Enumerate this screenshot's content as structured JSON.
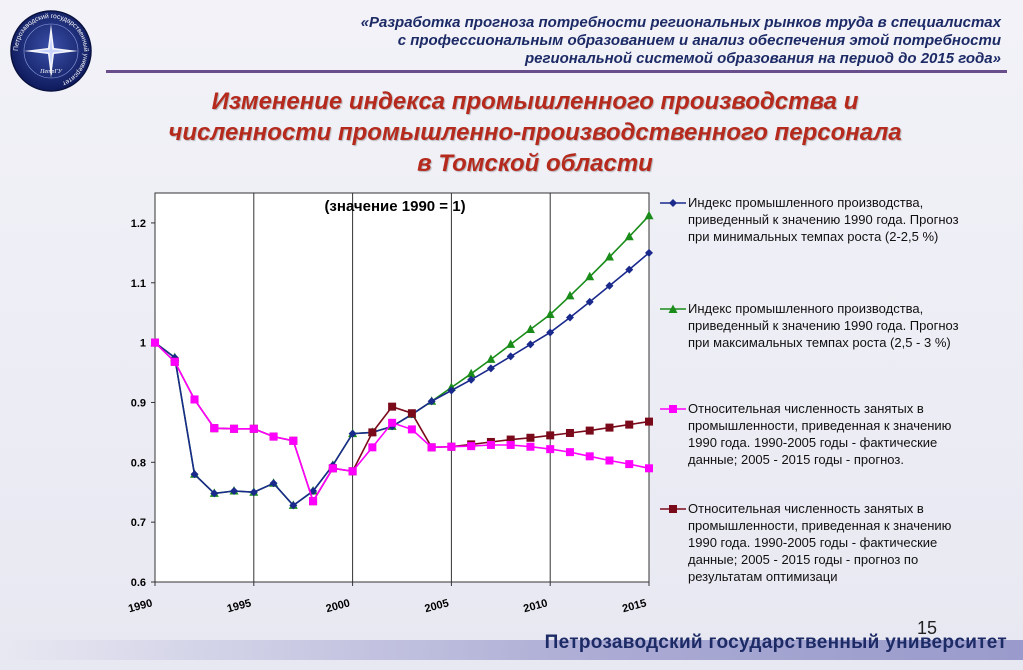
{
  "header": {
    "lines": [
      "«Разработка прогноза потребности региональных рынков труда в специалистах",
      "с профессиональным образованием и анализ обеспечения этой потребности",
      "региональной системой образования на период до 2015 года»"
    ],
    "logo_text": "Петрозаводский государственный университет",
    "logo_sub": "ПетрГУ"
  },
  "title": {
    "line1": "Изменение индекса промышленного производства и",
    "line2": "численности промышленно-производственного персонала",
    "line3": "в Томской области"
  },
  "chart_data": {
    "type": "line",
    "title": "(значение 1990 =  1)",
    "xlabel": "",
    "ylabel": "",
    "xlim": [
      1990,
      2015
    ],
    "ylim": [
      0.6,
      1.25
    ],
    "x_ticks": [
      1990,
      1995,
      2000,
      2005,
      2010,
      2015
    ],
    "y_ticks": [
      0.6,
      0.7,
      0.8,
      0.9,
      1,
      1.1,
      1.2
    ],
    "y_tick_labels": [
      "0.6",
      "0.7",
      "0.8",
      "0.9",
      "1",
      "1.1",
      "1.2"
    ],
    "grid": "vertical",
    "legend_position": "right",
    "x": [
      1990,
      1991,
      1992,
      1993,
      1994,
      1995,
      1996,
      1997,
      1998,
      1999,
      2000,
      2001,
      2002,
      2003,
      2004,
      2005,
      2006,
      2007,
      2008,
      2009,
      2010,
      2011,
      2012,
      2013,
      2014,
      2015
    ],
    "series": [
      {
        "name": "Индекс промышленного производства, приведенный к значению 1990 года. Прогноз при минимальных темпах роста (2-2,5 %)",
        "color": "#1a2a8c",
        "marker": "diamond",
        "values": [
          1.0,
          0.975,
          0.78,
          0.748,
          0.752,
          0.75,
          0.765,
          0.728,
          0.752,
          0.795,
          0.848,
          0.85,
          0.86,
          0.88,
          0.902,
          0.92,
          0.938,
          0.957,
          0.977,
          0.997,
          1.017,
          1.042,
          1.068,
          1.095,
          1.122,
          1.15
        ]
      },
      {
        "name": "Индекс промышленного производства, приведенный к значению 1990 года. Прогноз при максимальных темпах роста (2,5 - 3 %)",
        "color": "#1a8c1a",
        "marker": "triangle",
        "values": [
          1.0,
          0.975,
          0.78,
          0.748,
          0.752,
          0.75,
          0.765,
          0.728,
          0.752,
          0.795,
          0.848,
          0.85,
          0.86,
          0.88,
          0.902,
          0.925,
          0.948,
          0.972,
          0.997,
          1.022,
          1.047,
          1.078,
          1.11,
          1.143,
          1.177,
          1.212
        ]
      },
      {
        "name": "Относительная численность занятых в промышленности, приведенная к значению 1990 года. 1990-2005 годы - фактические данные; 2005 - 2015 годы - прогноз.",
        "color": "#ff00ff",
        "marker": "square",
        "values": [
          1.0,
          0.968,
          0.905,
          0.857,
          0.856,
          0.856,
          0.843,
          0.836,
          0.735,
          0.79,
          0.785,
          0.825,
          0.866,
          0.855,
          0.825,
          0.826,
          0.827,
          0.829,
          0.829,
          0.826,
          0.822,
          0.817,
          0.81,
          0.803,
          0.797,
          0.79
        ]
      },
      {
        "name": "Относительная численность занятых в промышленности, приведенная к значению 1990 года. 1990-2005 годы - фактические данные; 2005 - 2015 годы - прогноз по результатам оптимизаци",
        "color": "#7a0a1a",
        "marker": "square",
        "values": [
          1.0,
          0.968,
          0.905,
          0.857,
          0.856,
          0.856,
          0.843,
          0.836,
          0.735,
          0.79,
          0.785,
          0.85,
          0.893,
          0.882,
          0.825,
          0.826,
          0.83,
          0.834,
          0.838,
          0.841,
          0.845,
          0.849,
          0.853,
          0.858,
          0.863,
          0.868
        ]
      }
    ]
  },
  "legend": {
    "items": [
      "Индекс промышленного производства, приведенный к значению 1990 года. Прогноз при минимальных темпах роста (2-2,5 %)",
      "Индекс промышленного производства, приведенный к значению 1990 года. Прогноз при максимальных темпах роста (2,5 - 3 %)",
      "Относительная численность занятых в промышленности, приведенная к значению 1990 года. 1990-2005 годы - фактические данные; 2005 - 2015 годы - прогноз.",
      "Относительная численность занятых в промышленности, приведенная к значению 1990 года. 1990-2005 годы - фактические данные; 2005 - 2015 годы - прогноз по результатам оптимизаци"
    ]
  },
  "footer": {
    "page_number": "15",
    "university": "Петрозаводский государственный университет"
  }
}
